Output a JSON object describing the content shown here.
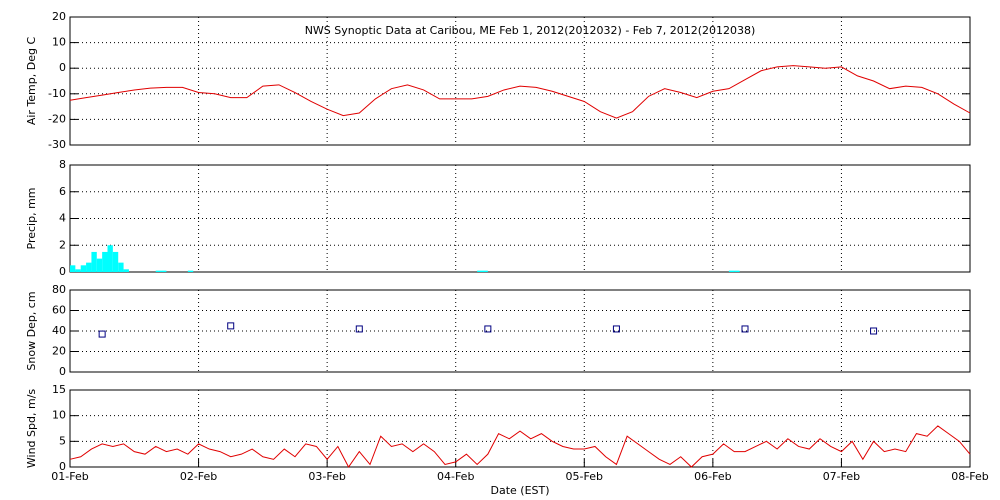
{
  "chart_data": [
    {
      "type": "line",
      "title": "NWS Synoptic Data at Caribou, ME   Feb  1, 2012(2012032) - Feb  7, 2012(2012038)",
      "ylabel": "Air Temp, Deg C",
      "xlim": [
        0,
        168
      ],
      "ylim": [
        -30,
        20
      ],
      "yticks": [
        -30,
        -20,
        -10,
        0,
        10,
        20
      ],
      "grid": true,
      "x": [
        0,
        3,
        6,
        9,
        12,
        15,
        18,
        21,
        24,
        27,
        30,
        33,
        36,
        39,
        42,
        45,
        48,
        51,
        54,
        57,
        60,
        63,
        66,
        69,
        72,
        75,
        78,
        81,
        84,
        87,
        90,
        93,
        96,
        99,
        102,
        105,
        108,
        111,
        114,
        117,
        120,
        123,
        126,
        129,
        132,
        135,
        138,
        141,
        144,
        147,
        150,
        153,
        156,
        159,
        162,
        165,
        168
      ],
      "series": [
        {
          "name": "Air Temp",
          "color": "#e00000",
          "values": [
            -12.5,
            -11.5,
            -10.5,
            -9.5,
            -8.5,
            -7.8,
            -7.5,
            -7.5,
            -9.5,
            -10,
            -11.5,
            -11.5,
            -7,
            -6.5,
            -9.5,
            -13,
            -16,
            -18.5,
            -17.5,
            -12,
            -8,
            -6.5,
            -8.5,
            -12,
            -12,
            -12,
            -11,
            -8.5,
            -7,
            -7.5,
            -9,
            -11,
            -13,
            -17,
            -19.5,
            -17,
            -11,
            -8,
            -9.5,
            -11.5,
            -9,
            -8,
            -4.5,
            -1,
            0.5,
            1,
            0.5,
            0,
            0.5,
            -3,
            -5,
            -8,
            -7,
            -7.5,
            -10,
            -14,
            -17.5
          ]
        }
      ]
    },
    {
      "type": "bar",
      "ylabel": "Precip, mm",
      "xlim": [
        0,
        168
      ],
      "ylim": [
        0,
        8
      ],
      "yticks": [
        0,
        2,
        4,
        6,
        8
      ],
      "grid": true,
      "x": [
        0.5,
        1.5,
        2.5,
        3.5,
        4.5,
        5.5,
        6.5,
        7.5,
        8.5,
        9.5,
        10.5,
        16.5,
        17.5,
        22.5,
        76.5,
        77.5,
        123.5,
        124.5
      ],
      "series": [
        {
          "name": "Precip",
          "color": "#00ffff",
          "values": [
            0.5,
            0.2,
            0.5,
            0.7,
            1.5,
            1.0,
            1.5,
            2.0,
            1.5,
            0.7,
            0.2,
            0.1,
            0.1,
            0.1,
            0.1,
            0.1,
            0.1,
            0.1
          ]
        }
      ]
    },
    {
      "type": "scatter",
      "ylabel": "Snow Dep, cm",
      "xlim": [
        0,
        168
      ],
      "ylim": [
        0,
        80
      ],
      "yticks": [
        0,
        20,
        40,
        60,
        80
      ],
      "grid": true,
      "x": [
        6,
        30,
        54,
        78,
        102,
        126,
        150
      ],
      "series": [
        {
          "name": "Snow Depth",
          "color": "#000080",
          "values": [
            37,
            45,
            42,
            42,
            42,
            42,
            40
          ]
        }
      ]
    },
    {
      "type": "line",
      "ylabel": "Wind Spd, m/s",
      "xlabel": "Date (EST)",
      "xlim": [
        0,
        168
      ],
      "ylim": [
        0,
        15
      ],
      "yticks": [
        0,
        5,
        10,
        15
      ],
      "grid": true,
      "xticks": [
        {
          "value": 0,
          "label": "01-Feb"
        },
        {
          "value": 24,
          "label": "02-Feb"
        },
        {
          "value": 48,
          "label": "03-Feb"
        },
        {
          "value": 72,
          "label": "04-Feb"
        },
        {
          "value": 96,
          "label": "05-Feb"
        },
        {
          "value": 120,
          "label": "06-Feb"
        },
        {
          "value": 144,
          "label": "07-Feb"
        },
        {
          "value": 168,
          "label": "08-Feb"
        }
      ],
      "x": [
        0,
        2,
        4,
        6,
        8,
        10,
        12,
        14,
        16,
        18,
        20,
        22,
        24,
        26,
        28,
        30,
        32,
        34,
        36,
        38,
        40,
        42,
        44,
        46,
        48,
        50,
        52,
        54,
        56,
        58,
        60,
        62,
        64,
        66,
        68,
        70,
        72,
        74,
        76,
        78,
        80,
        82,
        84,
        86,
        88,
        90,
        92,
        94,
        96,
        98,
        100,
        102,
        104,
        106,
        108,
        110,
        112,
        114,
        116,
        118,
        120,
        122,
        124,
        126,
        128,
        130,
        132,
        134,
        136,
        138,
        140,
        142,
        144,
        146,
        148,
        150,
        152,
        154,
        156,
        158,
        160,
        162,
        164,
        166,
        168
      ],
      "series": [
        {
          "name": "Wind Speed",
          "color": "#e00000",
          "values": [
            1.5,
            2,
            3.5,
            4.5,
            4,
            4.5,
            3,
            2.5,
            4,
            3,
            3.5,
            2.5,
            4.5,
            3.5,
            3,
            2,
            2.5,
            3.5,
            2,
            1.5,
            3.5,
            2,
            4.5,
            4,
            1.5,
            4,
            0,
            3,
            0.5,
            6,
            4,
            4.5,
            3,
            4.5,
            3,
            0.5,
            1,
            2.5,
            0.5,
            2.5,
            6.5,
            5.5,
            7,
            5.5,
            6.5,
            5,
            4,
            3.5,
            3.5,
            4,
            2,
            0.5,
            6,
            4.5,
            3,
            1.5,
            0.5,
            2,
            0,
            2,
            2.5,
            4.5,
            3,
            3,
            4,
            5,
            3.5,
            5.5,
            4,
            3.5,
            5.5,
            4,
            3,
            5,
            1.5,
            5,
            3,
            3.5,
            3,
            6.5,
            6,
            8,
            6.5,
            5,
            2.5
          ]
        }
      ]
    }
  ]
}
